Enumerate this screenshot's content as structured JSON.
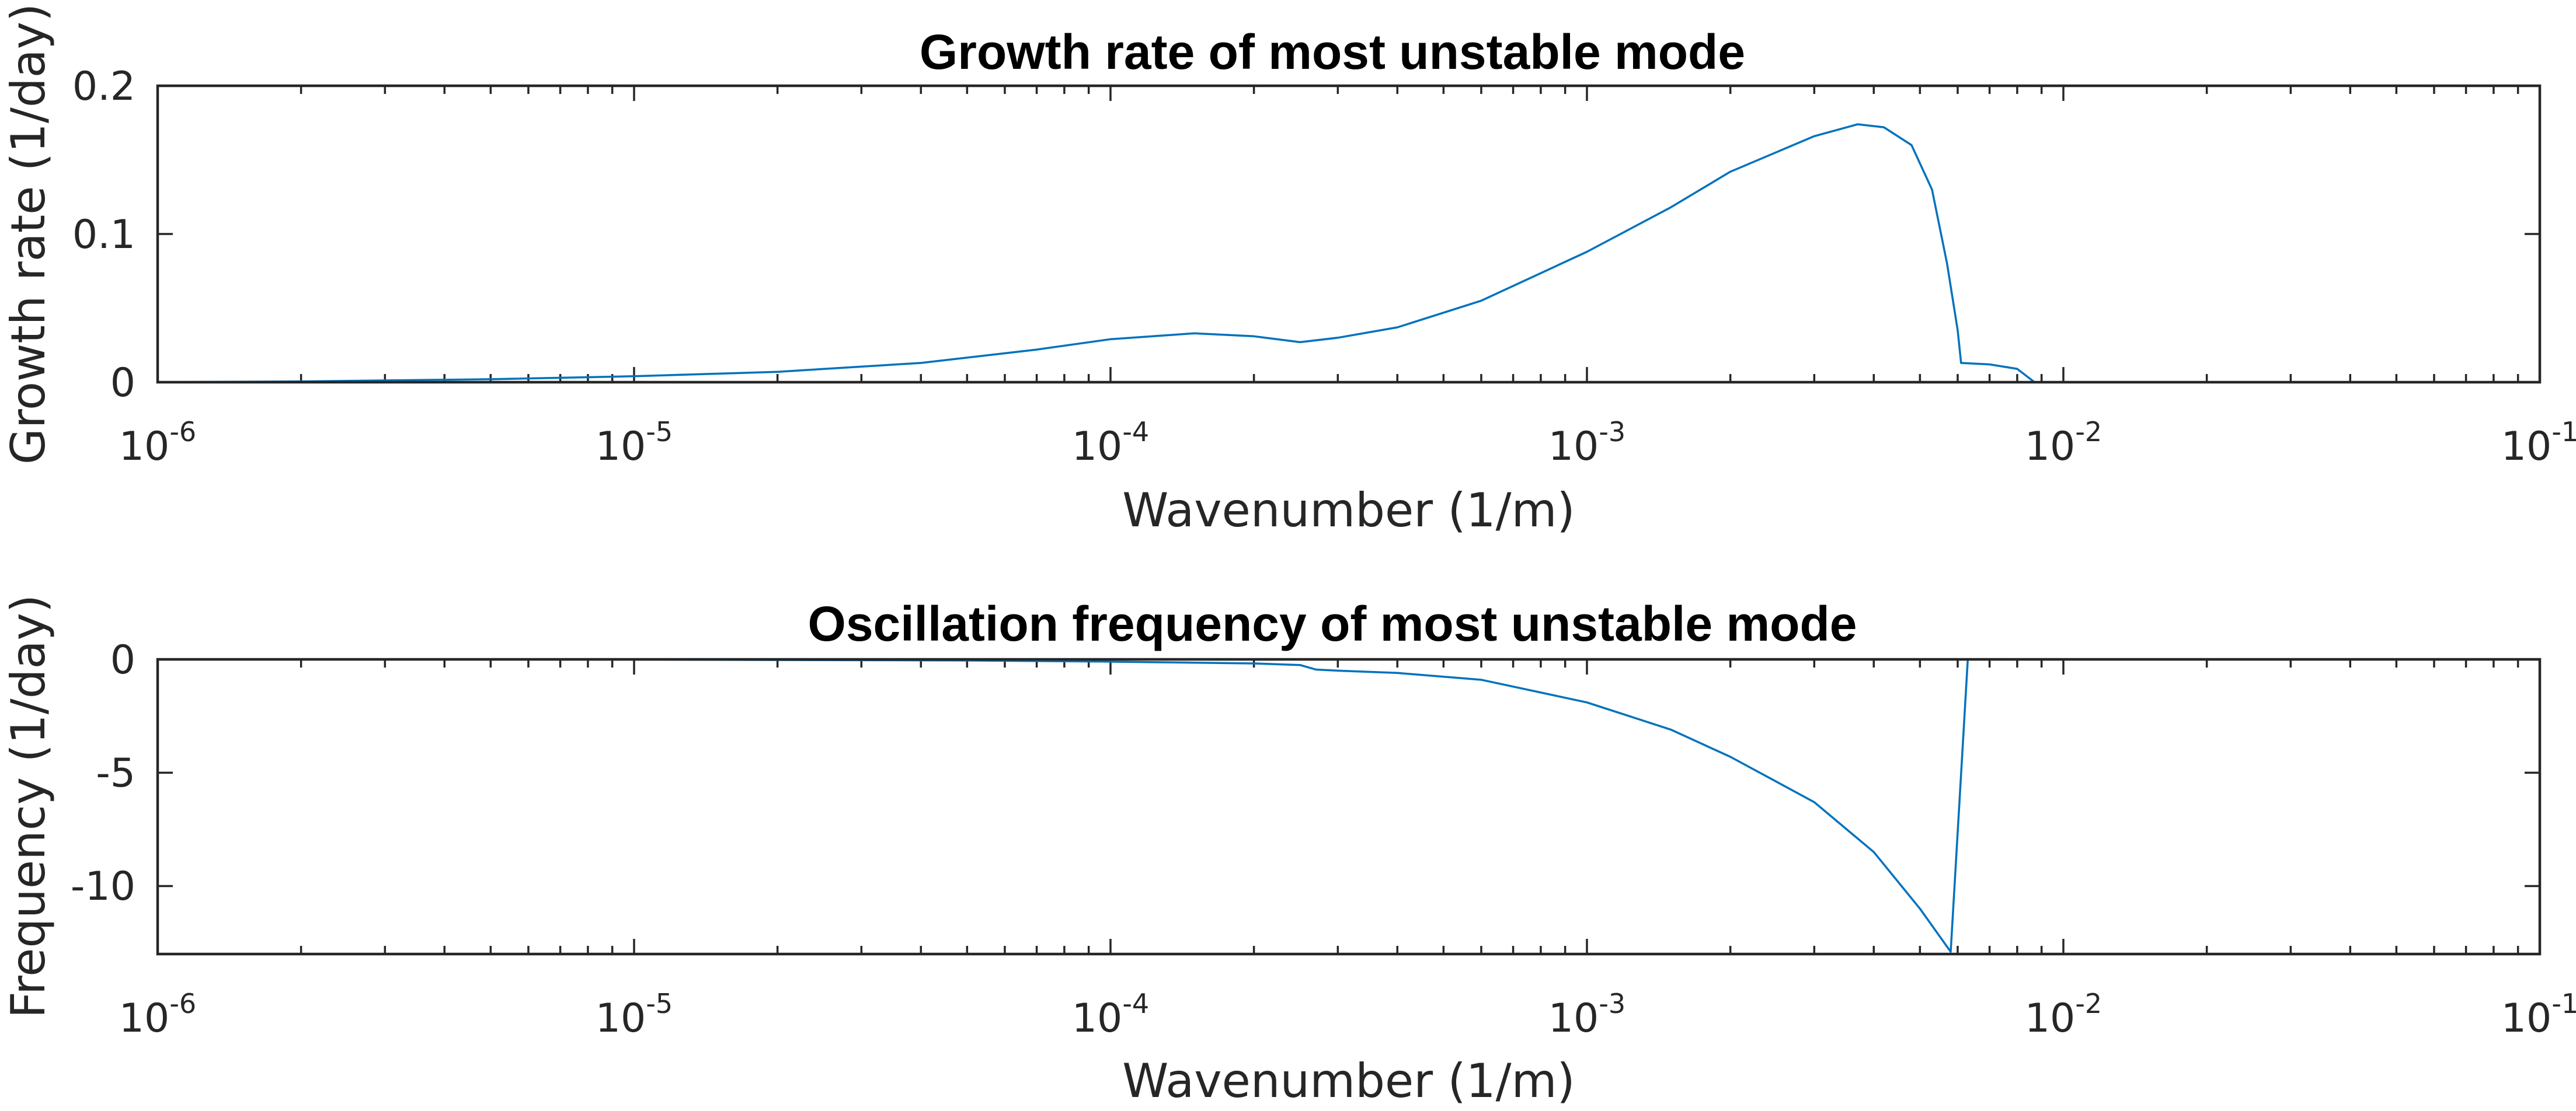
{
  "chart_data": [
    {
      "type": "line",
      "title": "Growth rate of most unstable mode",
      "xlabel": "Wavenumber (1/m)",
      "ylabel": "Growth rate (1/day)",
      "xscale": "log",
      "xlim": [
        1e-06,
        0.1
      ],
      "ylim": [
        0,
        0.2
      ],
      "grid": false,
      "legend": "none",
      "xticks": [
        {
          "base": "10",
          "exp": "-6",
          "value": 1e-06
        },
        {
          "base": "10",
          "exp": "-5",
          "value": 1e-05
        },
        {
          "base": "10",
          "exp": "-4",
          "value": 0.0001
        },
        {
          "base": "10",
          "exp": "-3",
          "value": 0.001
        },
        {
          "base": "10",
          "exp": "-2",
          "value": 0.01
        },
        {
          "base": "10",
          "exp": "-1",
          "value": 0.1
        }
      ],
      "yticks": [
        {
          "label": "0",
          "value": 0
        },
        {
          "label": "0.1",
          "value": 0.1
        },
        {
          "label": "0.2",
          "value": 0.2
        }
      ],
      "series": [
        {
          "color": "#0072BD",
          "points": [
            [
              1e-06,
              0.0
            ],
            [
              2e-06,
              0.0005
            ],
            [
              5e-06,
              0.002
            ],
            [
              1e-05,
              0.004
            ],
            [
              2e-05,
              0.007
            ],
            [
              4e-05,
              0.013
            ],
            [
              7e-05,
              0.022
            ],
            [
              0.0001,
              0.029
            ],
            [
              0.00015,
              0.033
            ],
            [
              0.0002,
              0.031
            ],
            [
              0.00025,
              0.027
            ],
            [
              0.0003,
              0.03
            ],
            [
              0.0004,
              0.037
            ],
            [
              0.0006,
              0.055
            ],
            [
              0.001,
              0.088
            ],
            [
              0.0015,
              0.118
            ],
            [
              0.002,
              0.142
            ],
            [
              0.003,
              0.166
            ],
            [
              0.0037,
              0.174
            ],
            [
              0.0042,
              0.172
            ],
            [
              0.0048,
              0.16
            ],
            [
              0.0053,
              0.13
            ],
            [
              0.0057,
              0.08
            ],
            [
              0.006,
              0.035
            ],
            [
              0.0061,
              0.013
            ],
            [
              0.007,
              0.012
            ],
            [
              0.008,
              0.009
            ],
            [
              0.0087,
              0.0
            ],
            [
              0.01,
              0.0
            ],
            [
              0.1,
              0.0
            ]
          ]
        }
      ]
    },
    {
      "type": "line",
      "title": "Oscillation frequency of most unstable mode",
      "xlabel": "Wavenumber (1/m)",
      "ylabel": "Frequency (1/day)",
      "xscale": "log",
      "xlim": [
        1e-06,
        0.1
      ],
      "ylim": [
        -13,
        0
      ],
      "grid": false,
      "legend": "none",
      "xticks": [
        {
          "base": "10",
          "exp": "-6",
          "value": 1e-06
        },
        {
          "base": "10",
          "exp": "-5",
          "value": 1e-05
        },
        {
          "base": "10",
          "exp": "-4",
          "value": 0.0001
        },
        {
          "base": "10",
          "exp": "-3",
          "value": 0.001
        },
        {
          "base": "10",
          "exp": "-2",
          "value": 0.01
        },
        {
          "base": "10",
          "exp": "-1",
          "value": 0.1
        }
      ],
      "yticks": [
        {
          "label": "0",
          "value": 0
        },
        {
          "label": "-5",
          "value": -5
        },
        {
          "label": "-10",
          "value": -10
        }
      ],
      "series": [
        {
          "color": "#0072BD",
          "points": [
            [
              1e-06,
              0.0
            ],
            [
              1e-05,
              -0.01
            ],
            [
              5e-05,
              -0.05
            ],
            [
              0.0001,
              -0.1
            ],
            [
              0.0002,
              -0.18
            ],
            [
              0.00025,
              -0.25
            ],
            [
              0.00027,
              -0.45
            ],
            [
              0.0003,
              -0.5
            ],
            [
              0.0004,
              -0.6
            ],
            [
              0.0006,
              -0.9
            ],
            [
              0.001,
              -1.9
            ],
            [
              0.0015,
              -3.1
            ],
            [
              0.002,
              -4.3
            ],
            [
              0.003,
              -6.3
            ],
            [
              0.004,
              -8.5
            ],
            [
              0.005,
              -11.0
            ],
            [
              0.0058,
              -12.9
            ],
            [
              0.0063,
              0.0
            ],
            [
              0.01,
              0.0
            ],
            [
              0.1,
              0.0
            ]
          ]
        }
      ]
    }
  ]
}
